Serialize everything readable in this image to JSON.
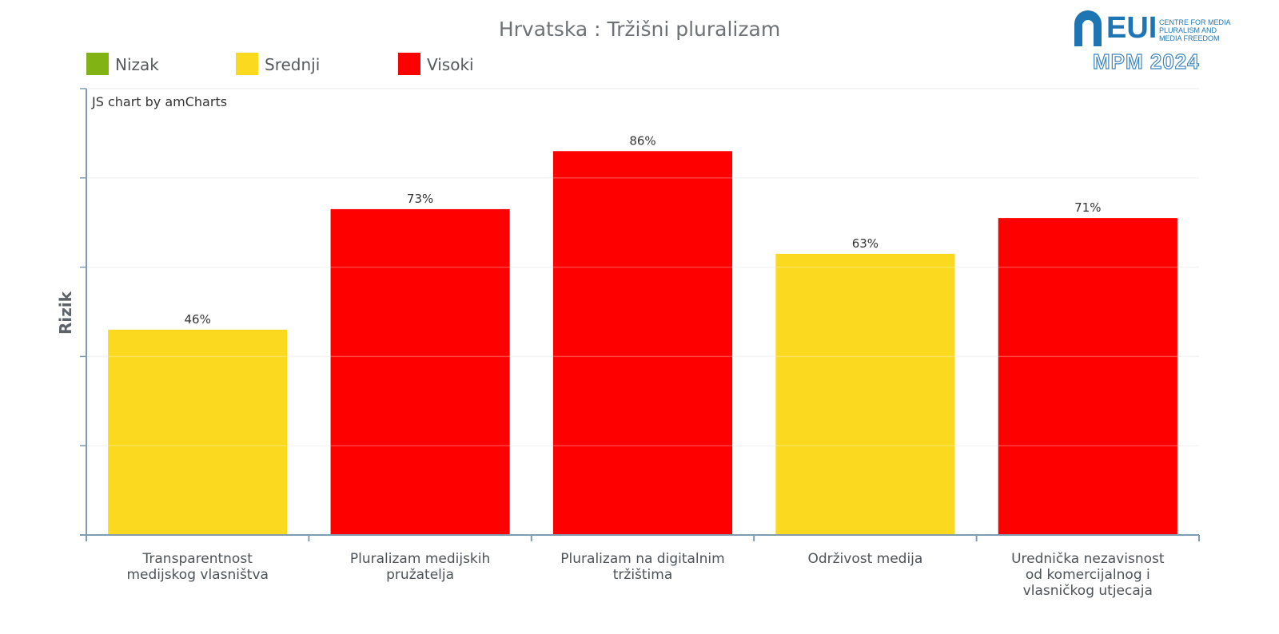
{
  "header": {
    "credit": "JS chart by amCharts"
  },
  "logo": {
    "wordmark": "EUI",
    "subtitle_lines": [
      "CENTRE FOR MEDIA",
      "PLURALISM AND",
      "MEDIA FREEDOM"
    ],
    "edition": "MPM 2024",
    "color": "#1d75b4"
  },
  "legend": [
    {
      "label": "Nizak",
      "color": "#82b314"
    },
    {
      "label": "Srednji",
      "color": "#fbd91e"
    },
    {
      "label": "Visoki",
      "color": "#ff0000"
    }
  ],
  "chart_data": {
    "type": "bar",
    "title": "Hrvatska : Tržišni pluralizam",
    "xlabel": "",
    "ylabel": "Rizik",
    "ylim": [
      0,
      100
    ],
    "grid": true,
    "legend_position": "top-left",
    "categories": [
      [
        "Transparentnost",
        "medijskog vlasništva"
      ],
      [
        "Pluralizam medijskih",
        "pružatelja"
      ],
      [
        "Pluralizam na digitalnim",
        "tržištima"
      ],
      [
        "Održivost medija"
      ],
      [
        "Urednička nezavisnost",
        "od komercijalnog i",
        "vlasničkog utjecaja"
      ]
    ],
    "values": [
      46,
      73,
      86,
      63,
      71
    ],
    "value_labels": [
      "46%",
      "73%",
      "86%",
      "63%",
      "71%"
    ],
    "risk_levels": [
      "Srednji",
      "Visoki",
      "Visoki",
      "Srednji",
      "Visoki"
    ],
    "colors": [
      "#fbd91e",
      "#ff0000",
      "#ff0000",
      "#fbd91e",
      "#ff0000"
    ]
  }
}
